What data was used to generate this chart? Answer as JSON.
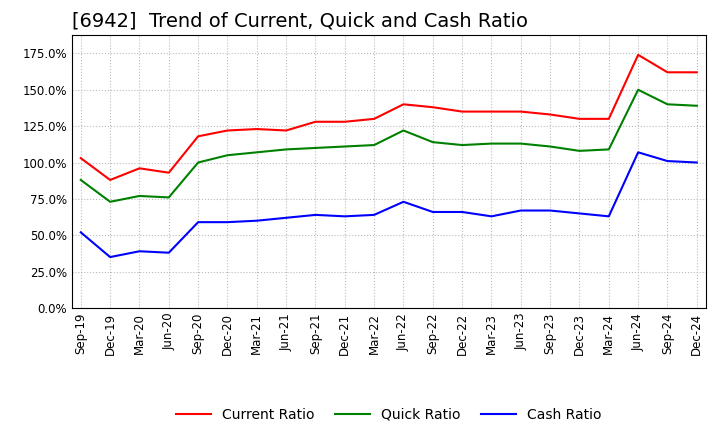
{
  "title": "[6942]  Trend of Current, Quick and Cash Ratio",
  "x_labels": [
    "Sep-19",
    "Dec-19",
    "Mar-20",
    "Jun-20",
    "Sep-20",
    "Dec-20",
    "Mar-21",
    "Jun-21",
    "Sep-21",
    "Dec-21",
    "Mar-22",
    "Jun-22",
    "Sep-22",
    "Dec-22",
    "Mar-23",
    "Jun-23",
    "Sep-23",
    "Dec-23",
    "Mar-24",
    "Jun-24",
    "Sep-24",
    "Dec-24"
  ],
  "current_ratio": [
    1.03,
    0.88,
    0.96,
    0.93,
    1.18,
    1.22,
    1.23,
    1.22,
    1.28,
    1.28,
    1.3,
    1.4,
    1.38,
    1.35,
    1.35,
    1.35,
    1.33,
    1.3,
    1.3,
    1.74,
    1.62,
    1.62
  ],
  "quick_ratio": [
    0.88,
    0.73,
    0.77,
    0.76,
    1.0,
    1.05,
    1.07,
    1.09,
    1.1,
    1.11,
    1.12,
    1.22,
    1.14,
    1.12,
    1.13,
    1.13,
    1.11,
    1.08,
    1.09,
    1.5,
    1.4,
    1.39
  ],
  "cash_ratio": [
    0.52,
    0.35,
    0.39,
    0.38,
    0.59,
    0.59,
    0.6,
    0.62,
    0.64,
    0.63,
    0.64,
    0.73,
    0.66,
    0.66,
    0.63,
    0.67,
    0.67,
    0.65,
    0.63,
    1.07,
    1.01,
    1.0
  ],
  "current_color": "#FF0000",
  "quick_color": "#008000",
  "cash_color": "#0000FF",
  "line_width": 1.5,
  "background_color": "#FFFFFF",
  "plot_bg_color": "#FFFFFF",
  "grid_color": "#BBBBBB",
  "ylim": [
    0.0,
    1.875
  ],
  "yticks": [
    0.0,
    0.25,
    0.5,
    0.75,
    1.0,
    1.25,
    1.5,
    1.75
  ],
  "title_fontsize": 14,
  "tick_fontsize": 8.5,
  "legend_fontsize": 10
}
